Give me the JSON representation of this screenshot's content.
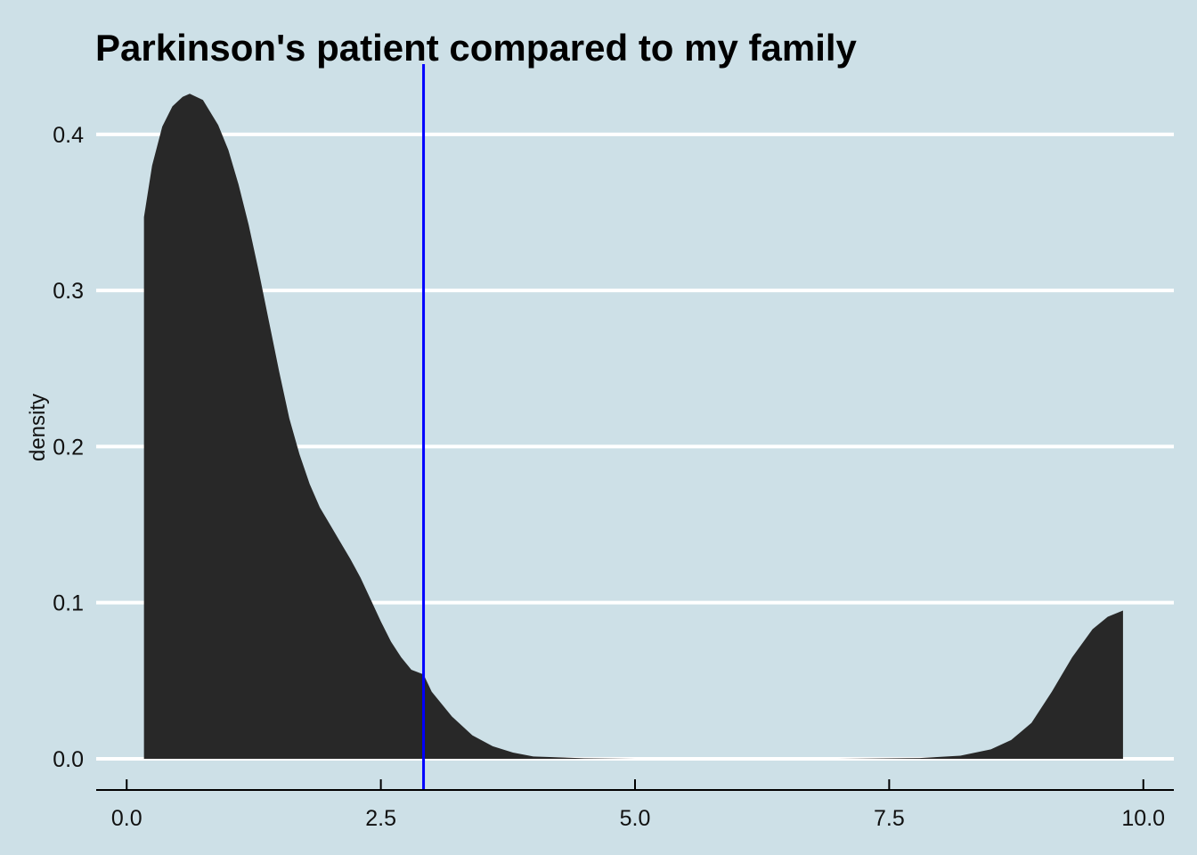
{
  "chart_data": {
    "type": "area",
    "title": "Parkinson's patient compared to my family",
    "xlabel": "",
    "ylabel": "density",
    "xlim": [
      -0.3,
      10.3
    ],
    "ylim": [
      -0.02,
      0.445
    ],
    "x_ticks": [
      0.0,
      2.5,
      5.0,
      7.5,
      10.0
    ],
    "x_tick_labels": [
      "0.0",
      "2.5",
      "5.0",
      "7.5",
      "10.0"
    ],
    "y_ticks": [
      0.0,
      0.1,
      0.2,
      0.3,
      0.4
    ],
    "y_tick_labels": [
      "0.0",
      "0.1",
      "0.2",
      "0.3",
      "0.4"
    ],
    "grid": "horizontal major lines",
    "fill_color": "#282828",
    "background_color": "#cde0e7",
    "grid_color": "#ffffff",
    "vline": {
      "x": 2.92,
      "color": "#0000ff"
    },
    "density_points": [
      [
        0.17,
        0.347
      ],
      [
        0.25,
        0.38
      ],
      [
        0.35,
        0.405
      ],
      [
        0.45,
        0.418
      ],
      [
        0.55,
        0.424
      ],
      [
        0.62,
        0.426
      ],
      [
        0.75,
        0.422
      ],
      [
        0.9,
        0.406
      ],
      [
        1.0,
        0.39
      ],
      [
        1.1,
        0.368
      ],
      [
        1.2,
        0.342
      ],
      [
        1.3,
        0.312
      ],
      [
        1.4,
        0.28
      ],
      [
        1.5,
        0.248
      ],
      [
        1.6,
        0.218
      ],
      [
        1.7,
        0.195
      ],
      [
        1.8,
        0.176
      ],
      [
        1.9,
        0.161
      ],
      [
        2.0,
        0.15
      ],
      [
        2.1,
        0.139
      ],
      [
        2.2,
        0.128
      ],
      [
        2.3,
        0.116
      ],
      [
        2.4,
        0.102
      ],
      [
        2.5,
        0.088
      ],
      [
        2.6,
        0.075
      ],
      [
        2.7,
        0.065
      ],
      [
        2.8,
        0.057
      ],
      [
        2.92,
        0.054
      ],
      [
        3.0,
        0.043
      ],
      [
        3.2,
        0.027
      ],
      [
        3.4,
        0.015
      ],
      [
        3.6,
        0.008
      ],
      [
        3.8,
        0.004
      ],
      [
        4.0,
        0.0015
      ],
      [
        4.5,
        0.0003
      ],
      [
        5.0,
        0.0
      ],
      [
        6.0,
        0.0
      ],
      [
        7.0,
        0.0
      ],
      [
        7.8,
        0.0005
      ],
      [
        8.2,
        0.002
      ],
      [
        8.5,
        0.006
      ],
      [
        8.7,
        0.012
      ],
      [
        8.9,
        0.023
      ],
      [
        9.1,
        0.043
      ],
      [
        9.3,
        0.065
      ],
      [
        9.5,
        0.083
      ],
      [
        9.65,
        0.091
      ],
      [
        9.8,
        0.095
      ]
    ]
  }
}
